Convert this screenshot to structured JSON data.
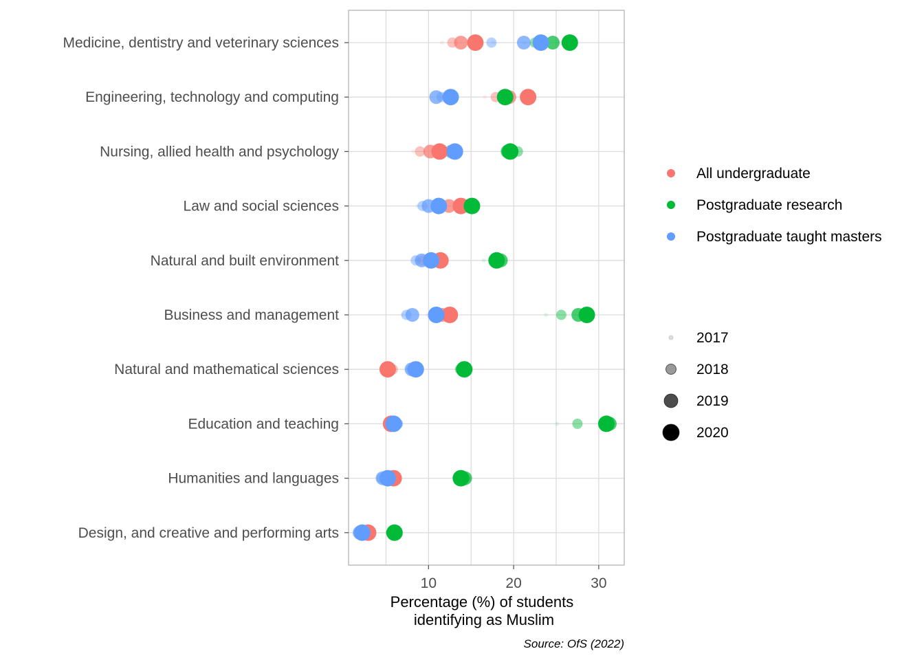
{
  "chart_data": {
    "type": "scatter",
    "title": "",
    "xlabel": "Percentage (%) of students identifying as Muslim",
    "ylabel": "",
    "caption": "Source: OfS (2022)",
    "xlim": [
      0.6,
      33
    ],
    "x_ticks": [
      10,
      20,
      30
    ],
    "grid": true,
    "legend_position": "right",
    "categories": [
      "Medicine, dentistry and veterinary sciences",
      "Engineering, technology and computing",
      "Nursing, allied health and psychology",
      "Law and social sciences",
      "Natural and built environment",
      "Business and management",
      "Natural and mathematical sciences",
      "Education and teaching",
      "Humanities and languages",
      "Design, and creative and performing arts"
    ],
    "years": [
      2017,
      2018,
      2019,
      2020
    ],
    "series": [
      {
        "name": "All undergraduate",
        "color": "#F8766D",
        "values": [
          [
            11.6,
            12.8,
            13.8,
            15.5
          ],
          [
            16.6,
            17.9,
            19.5,
            21.7
          ],
          [
            8.2,
            9.0,
            10.2,
            11.3
          ],
          [
            10.9,
            11.4,
            12.4,
            13.8
          ],
          [
            8.6,
            9.3,
            10.4,
            11.4
          ],
          [
            9.9,
            10.7,
            11.6,
            12.5
          ],
          [
            6.0,
            5.8,
            5.3,
            5.2
          ],
          [
            5.8,
            5.7,
            5.6,
            5.6
          ],
          [
            4.8,
            5.1,
            5.5,
            5.9
          ],
          [
            2.3,
            2.5,
            2.7,
            2.9
          ]
        ]
      },
      {
        "name": "Postgraduate research",
        "color": "#00BA38",
        "values": [
          [
            21.3,
            22.5,
            24.6,
            26.6
          ],
          [
            18.6,
            18.9,
            19.1,
            19.0
          ],
          [
            18.8,
            20.5,
            19.3,
            19.6
          ],
          [
            13.6,
            14.2,
            14.7,
            15.1
          ],
          [
            16.5,
            18.3,
            18.5,
            18.0
          ],
          [
            23.8,
            25.6,
            27.6,
            28.6
          ],
          [
            14.0,
            13.7,
            14.1,
            14.2
          ],
          [
            25.1,
            27.5,
            31.3,
            30.9
          ],
          [
            13.3,
            14.3,
            14.3,
            13.8
          ],
          [
            5.2,
            5.6,
            6.0,
            6.0
          ]
        ]
      },
      {
        "name": "Postgraduate taught masters",
        "color": "#619CFF",
        "values": [
          [
            17.6,
            17.4,
            21.2,
            23.2
          ],
          [
            11.2,
            11.5,
            10.9,
            12.6
          ],
          [
            12.1,
            12.4,
            12.7,
            13.1
          ],
          [
            8.7,
            9.3,
            10.0,
            11.2
          ],
          [
            8.7,
            8.5,
            9.2,
            10.3
          ],
          [
            7.0,
            7.4,
            8.1,
            10.9
          ],
          [
            7.6,
            8.0,
            8.0,
            8.5
          ],
          [
            6.7,
            6.4,
            6.1,
            5.9
          ],
          [
            4.8,
            4.5,
            4.6,
            5.2
          ],
          [
            1.7,
            1.8,
            1.9,
            2.2
          ]
        ]
      }
    ]
  },
  "legend": {
    "series": [
      "All undergraduate",
      "Postgraduate research",
      "Postgraduate taught masters"
    ],
    "years": [
      "2017",
      "2018",
      "2019",
      "2020"
    ]
  }
}
